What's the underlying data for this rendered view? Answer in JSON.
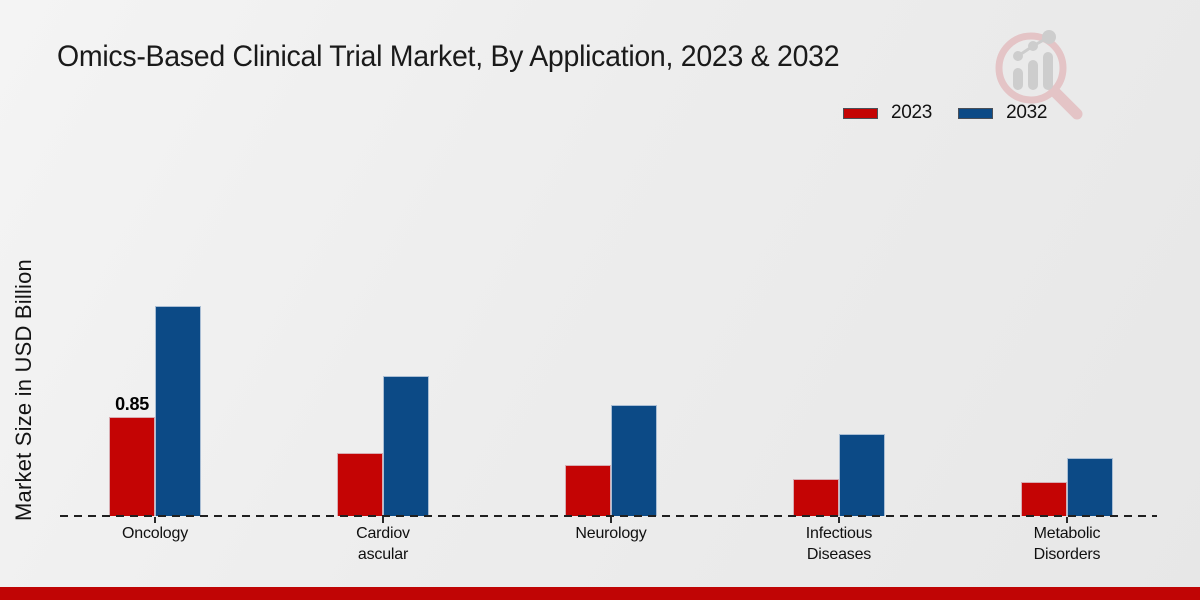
{
  "title": "Omics-Based Clinical Trial Market, By Application, 2023 & 2032",
  "legend": {
    "items": [
      {
        "label": "2023",
        "color": "#c40404"
      },
      {
        "label": "2032",
        "color": "#0c4a86"
      }
    ]
  },
  "watermark": {
    "icon": "magnifier-bar-chart-logo"
  },
  "footer": {
    "band_color": "#c00505"
  },
  "chart_data": {
    "type": "bar",
    "title": "Omics-Based Clinical Trial Market, By Application, 2023 & 2032",
    "xlabel": "",
    "ylabel": "Market Size in USD Billion",
    "categories": [
      "Oncology",
      "Cardiovascular",
      "Neurology",
      "Infectious Diseases",
      "Metabolic Disorders"
    ],
    "category_display_lines": [
      [
        "Oncology"
      ],
      [
        "Cardiov",
        "ascular"
      ],
      [
        "Neurology"
      ],
      [
        "Infectious",
        "Diseases"
      ],
      [
        "Metabolic",
        "Disorders"
      ]
    ],
    "series": [
      {
        "name": "2023",
        "color": "#c40404",
        "values": [
          0.85,
          0.54,
          0.44,
          0.32,
          0.29
        ]
      },
      {
        "name": "2032",
        "color": "#0c4a86",
        "values": [
          1.8,
          1.2,
          0.95,
          0.7,
          0.5
        ]
      }
    ],
    "annotations": [
      {
        "series_index": 0,
        "category_index": 0,
        "text": "0.85"
      }
    ],
    "ylim": [
      0,
      2
    ],
    "gridlines": false,
    "y_axis_ticks_visible": false,
    "baseline_style": "dashed",
    "legend_position": "top-right"
  }
}
